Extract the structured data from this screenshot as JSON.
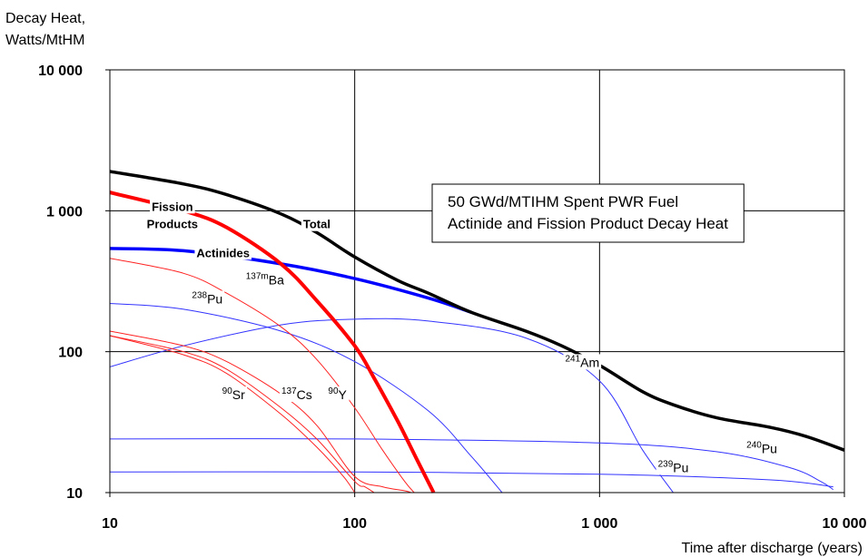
{
  "chart_data": {
    "type": "line",
    "xscale": "log",
    "yscale": "log",
    "xlim": [
      10,
      10000
    ],
    "ylim": [
      10,
      10000
    ],
    "grid": true,
    "ylabel_line1": "Decay Heat,",
    "ylabel_line2": "Watts/MtHM",
    "xlabel": "Time after discharge (years)",
    "x_ticks": [
      "10",
      "100",
      "1 000",
      "10 000"
    ],
    "y_ticks": [
      "10 000",
      "1 000",
      "100",
      "10"
    ],
    "annotation_line1": "50 GWd/MTIHM Spent PWR Fuel",
    "annotation_line2": "Actinide and Fission Product Decay Heat",
    "series": [
      {
        "key": "total",
        "name": "Total",
        "color": "#000000",
        "width": 3.5,
        "x": [
          10,
          20,
          30,
          50,
          70,
          100,
          150,
          200,
          300,
          500,
          700,
          1000,
          1500,
          2000,
          3000,
          5000,
          7000,
          10000
        ],
        "y": [
          1900,
          1550,
          1300,
          950,
          700,
          470,
          320,
          260,
          190,
          140,
          110,
          80,
          52,
          42,
          34,
          29,
          25,
          20
        ]
      },
      {
        "key": "fp",
        "name": "Fission Products",
        "color": "#ff0000",
        "width": 4,
        "x": [
          10,
          20,
          30,
          50,
          70,
          100,
          120,
          150,
          180,
          210
        ],
        "y": [
          1350,
          1000,
          760,
          420,
          230,
          110,
          65,
          32,
          17,
          10
        ]
      },
      {
        "key": "act",
        "name": "Actinides",
        "color": "#0000ff",
        "width": 3.5,
        "x": [
          10,
          20,
          50,
          100,
          200,
          300
        ],
        "y": [
          540,
          520,
          420,
          330,
          240,
          190
        ]
      },
      {
        "key": "am241",
        "name": "241Am",
        "color": "#3333ff",
        "width": 1,
        "x": [
          10,
          20,
          50,
          100,
          200,
          500,
          1000,
          1500,
          2000
        ],
        "y": [
          78,
          110,
          155,
          170,
          165,
          125,
          62,
          20,
          10
        ]
      },
      {
        "key": "pu238",
        "name": "238Pu",
        "color": "#3333ff",
        "width": 1,
        "x": [
          10,
          20,
          50,
          100,
          200,
          300,
          400
        ],
        "y": [
          220,
          200,
          140,
          85,
          38,
          18,
          10
        ]
      },
      {
        "key": "pu240",
        "name": "240Pu",
        "color": "#3333ff",
        "width": 1,
        "x": [
          10,
          100,
          1000,
          3000,
          6000,
          8000,
          9000
        ],
        "y": [
          24,
          24,
          22.5,
          19.5,
          15,
          12,
          10.5
        ]
      },
      {
        "key": "pu239",
        "name": "239Pu",
        "color": "#3333ff",
        "width": 1,
        "x": [
          10,
          100,
          1000,
          5000,
          9000
        ],
        "y": [
          14,
          14,
          13.5,
          12.3,
          11
        ]
      },
      {
        "key": "ba137m",
        "name": "137mBa",
        "color": "#ff2222",
        "width": 1,
        "x": [
          10,
          20,
          30,
          50,
          70,
          100,
          130,
          160,
          175
        ],
        "y": [
          460,
          360,
          260,
          150,
          88,
          40,
          20,
          12,
          10
        ]
      },
      {
        "key": "cs137",
        "name": "137Cs",
        "color": "#ff2222",
        "width": 1,
        "x": [
          10,
          20,
          30,
          50,
          70,
          100,
          130,
          160,
          170
        ],
        "y": [
          140,
          110,
          85,
          50,
          30,
          13,
          11,
          10.3,
          10
        ]
      },
      {
        "key": "sr90",
        "name": "90Sr",
        "color": "#ff2222",
        "width": 1,
        "x": [
          10,
          20,
          30,
          50,
          70,
          90,
          100
        ],
        "y": [
          130,
          95,
          70,
          36,
          21,
          13,
          10
        ]
      },
      {
        "key": "y90",
        "name": "90Y",
        "color": "#ff2222",
        "width": 1,
        "x": [
          10,
          20,
          30,
          50,
          70,
          100,
          110,
          120
        ],
        "y": [
          130,
          100,
          75,
          40,
          24,
          12,
          11,
          10
        ]
      }
    ],
    "labels": [
      {
        "text": "Fission",
        "sup": "",
        "x": 18,
        "y": 1000,
        "bold": true
      },
      {
        "text": "Products",
        "sup": "",
        "x": 18,
        "y": 750,
        "bold": true
      },
      {
        "text": "Total",
        "sup": "",
        "x": 70,
        "y": 750,
        "bold": true
      },
      {
        "text": "Actinides",
        "sup": "",
        "x": 29,
        "y": 470,
        "bold": true
      },
      {
        "text": "Ba",
        "sup": "137m",
        "x": 43,
        "y": 300,
        "bold": false
      },
      {
        "text": "Pu",
        "sup": "238",
        "x": 25,
        "y": 220,
        "bold": false
      },
      {
        "text": "Am",
        "sup": "241",
        "x": 850,
        "y": 78,
        "bold": false
      },
      {
        "text": "Sr",
        "sup": "90",
        "x": 32,
        "y": 46,
        "bold": false
      },
      {
        "text": "Cs",
        "sup": "137",
        "x": 58,
        "y": 46,
        "bold": false
      },
      {
        "text": "Y",
        "sup": "90",
        "x": 85,
        "y": 46,
        "bold": false
      },
      {
        "text": "Pu",
        "sup": "240",
        "x": 4600,
        "y": 19,
        "bold": false
      },
      {
        "text": "Pu",
        "sup": "239",
        "x": 2000,
        "y": 14,
        "bold": false
      }
    ]
  }
}
